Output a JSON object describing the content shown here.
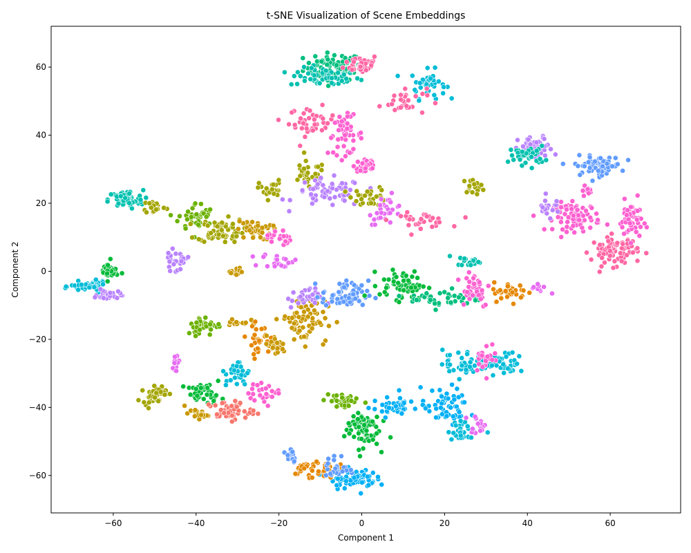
{
  "chart_data": {
    "type": "scatter",
    "title": "t-SNE Visualization of Scene Embeddings",
    "xlabel": "Component 1",
    "ylabel": "Component 2",
    "xlim": [
      -75,
      77
    ],
    "ylim": [
      -71,
      72
    ],
    "xticks": [
      -60,
      -40,
      -20,
      0,
      20,
      40,
      60
    ],
    "yticks": [
      -60,
      -40,
      -20,
      0,
      20,
      40,
      60
    ],
    "grid": false,
    "legend": "none",
    "palette": [
      "#f8766d",
      "#e58700",
      "#c99800",
      "#a3a500",
      "#6bb100",
      "#00ba38",
      "#00bf7d",
      "#00c0af",
      "#00bcd8",
      "#00b0f6",
      "#619cff",
      "#b983ff",
      "#e76bf3",
      "#fd61d1",
      "#ff67a4"
    ],
    "clusters": [
      {
        "x": -7,
        "y": 60,
        "sx": 5,
        "sy": 3,
        "n": 70,
        "c": 6
      },
      {
        "x": -9,
        "y": 57,
        "sx": 6,
        "sy": 2,
        "n": 60,
        "c": 7
      },
      {
        "x": 0,
        "y": 61,
        "sx": 3,
        "sy": 2,
        "n": 40,
        "c": 14
      },
      {
        "x": 16,
        "y": 55,
        "sx": 3,
        "sy": 3,
        "n": 40,
        "c": 8
      },
      {
        "x": 10,
        "y": 50,
        "sx": 4,
        "sy": 3,
        "n": 30,
        "c": 14
      },
      {
        "x": -12,
        "y": 44,
        "sx": 4,
        "sy": 3,
        "n": 40,
        "c": 14
      },
      {
        "x": -4,
        "y": 40,
        "sx": 3,
        "sy": 4,
        "n": 50,
        "c": 13
      },
      {
        "x": 1,
        "y": 31,
        "sx": 2,
        "sy": 2,
        "n": 35,
        "c": 13
      },
      {
        "x": -13,
        "y": 28,
        "sx": 3,
        "sy": 3,
        "n": 30,
        "c": 3
      },
      {
        "x": -8,
        "y": 23,
        "sx": 6,
        "sy": 3,
        "n": 60,
        "c": 11
      },
      {
        "x": 2,
        "y": 22,
        "sx": 3,
        "sy": 2,
        "n": 30,
        "c": 3
      },
      {
        "x": 6,
        "y": 18,
        "sx": 3,
        "sy": 3,
        "n": 30,
        "c": 12
      },
      {
        "x": 14,
        "y": 15,
        "sx": 5,
        "sy": 1.5,
        "n": 30,
        "c": 14
      },
      {
        "x": 27,
        "y": 25,
        "sx": 2,
        "sy": 1.5,
        "n": 20,
        "c": 3
      },
      {
        "x": -57,
        "y": 21,
        "sx": 3,
        "sy": 2,
        "n": 70,
        "c": 7
      },
      {
        "x": -50,
        "y": 19,
        "sx": 2,
        "sy": 1.5,
        "n": 20,
        "c": 3
      },
      {
        "x": -40,
        "y": 16,
        "sx": 3,
        "sy": 3,
        "n": 40,
        "c": 4
      },
      {
        "x": -34,
        "y": 12,
        "sx": 4,
        "sy": 2.5,
        "n": 70,
        "c": 3
      },
      {
        "x": -26,
        "y": 12,
        "sx": 3,
        "sy": 2,
        "n": 40,
        "c": 2
      },
      {
        "x": -20,
        "y": 10,
        "sx": 2,
        "sy": 2,
        "n": 20,
        "c": 13
      },
      {
        "x": -22,
        "y": 24,
        "sx": 2,
        "sy": 2,
        "n": 25,
        "c": 3
      },
      {
        "x": 42,
        "y": 36,
        "sx": 3,
        "sy": 2.5,
        "n": 60,
        "c": 11
      },
      {
        "x": 40,
        "y": 34,
        "sx": 3,
        "sy": 2,
        "n": 40,
        "c": 7
      },
      {
        "x": 57,
        "y": 31,
        "sx": 4,
        "sy": 2,
        "n": 70,
        "c": 10
      },
      {
        "x": 54,
        "y": 24,
        "sx": 1,
        "sy": 1,
        "n": 10,
        "c": 13
      },
      {
        "x": 52,
        "y": 16,
        "sx": 4,
        "sy": 3,
        "n": 80,
        "c": 13
      },
      {
        "x": 61,
        "y": 6,
        "sx": 4,
        "sy": 3,
        "n": 80,
        "c": 14
      },
      {
        "x": 65,
        "y": 15,
        "sx": 2,
        "sy": 4,
        "n": 50,
        "c": 13
      },
      {
        "x": 45,
        "y": 19,
        "sx": 2,
        "sy": 2,
        "n": 20,
        "c": 11
      },
      {
        "x": -66,
        "y": -4.5,
        "sx": 3,
        "sy": 1,
        "n": 50,
        "c": 8
      },
      {
        "x": -61,
        "y": 0,
        "sx": 1.5,
        "sy": 2,
        "n": 35,
        "c": 5
      },
      {
        "x": -61,
        "y": -7,
        "sx": 2,
        "sy": 1,
        "n": 30,
        "c": 11
      },
      {
        "x": -45,
        "y": 3,
        "sx": 2,
        "sy": 2,
        "n": 25,
        "c": 11
      },
      {
        "x": -30,
        "y": 0,
        "sx": 2,
        "sy": 1,
        "n": 15,
        "c": 2
      },
      {
        "x": -20,
        "y": 3,
        "sx": 3,
        "sy": 1.5,
        "n": 20,
        "c": 12
      },
      {
        "x": -14,
        "y": -14,
        "sx": 4,
        "sy": 5,
        "n": 80,
        "c": 2
      },
      {
        "x": -14,
        "y": -8,
        "sx": 3,
        "sy": 2,
        "n": 30,
        "c": 11
      },
      {
        "x": -4,
        "y": -7,
        "sx": 4,
        "sy": 3,
        "n": 60,
        "c": 10
      },
      {
        "x": 10,
        "y": -4,
        "sx": 4,
        "sy": 3,
        "n": 60,
        "c": 5
      },
      {
        "x": 20,
        "y": -8,
        "sx": 6,
        "sy": 2,
        "n": 40,
        "c": 6
      },
      {
        "x": 27,
        "y": -5,
        "sx": 3,
        "sy": 4,
        "n": 40,
        "c": 13
      },
      {
        "x": 36,
        "y": -6,
        "sx": 3,
        "sy": 2,
        "n": 40,
        "c": 1
      },
      {
        "x": 43,
        "y": -5,
        "sx": 1.5,
        "sy": 1,
        "n": 10,
        "c": 12
      },
      {
        "x": 26,
        "y": 3,
        "sx": 2,
        "sy": 1,
        "n": 20,
        "c": 7
      },
      {
        "x": -38,
        "y": -16,
        "sx": 3,
        "sy": 2,
        "n": 40,
        "c": 4
      },
      {
        "x": -30,
        "y": -15,
        "sx": 2,
        "sy": 1,
        "n": 15,
        "c": 2
      },
      {
        "x": -25,
        "y": -20,
        "sx": 2,
        "sy": 3,
        "n": 30,
        "c": 1
      },
      {
        "x": -21,
        "y": -22,
        "sx": 2,
        "sy": 2,
        "n": 25,
        "c": 2
      },
      {
        "x": -45,
        "y": -27,
        "sx": 1,
        "sy": 2,
        "n": 15,
        "c": 12
      },
      {
        "x": -50,
        "y": -36,
        "sx": 2,
        "sy": 2,
        "n": 40,
        "c": 3
      },
      {
        "x": -38,
        "y": -36,
        "sx": 3,
        "sy": 2,
        "n": 40,
        "c": 5
      },
      {
        "x": -30,
        "y": -30,
        "sx": 2,
        "sy": 3,
        "n": 30,
        "c": 8
      },
      {
        "x": -32,
        "y": -41,
        "sx": 4,
        "sy": 2,
        "n": 50,
        "c": 0
      },
      {
        "x": -40,
        "y": -42,
        "sx": 2,
        "sy": 1,
        "n": 20,
        "c": 2
      },
      {
        "x": -23,
        "y": -36,
        "sx": 3,
        "sy": 2,
        "n": 25,
        "c": 13
      },
      {
        "x": -5,
        "y": -38,
        "sx": 3,
        "sy": 2,
        "n": 30,
        "c": 4
      },
      {
        "x": 0,
        "y": -46,
        "sx": 3,
        "sy": 4,
        "n": 70,
        "c": 5
      },
      {
        "x": 8,
        "y": -40,
        "sx": 4,
        "sy": 2,
        "n": 40,
        "c": 9
      },
      {
        "x": 20,
        "y": -40,
        "sx": 4,
        "sy": 4,
        "n": 60,
        "c": 9
      },
      {
        "x": 25,
        "y": -27,
        "sx": 4,
        "sy": 3,
        "n": 50,
        "c": 8
      },
      {
        "x": 35,
        "y": -27,
        "sx": 3,
        "sy": 2,
        "n": 40,
        "c": 8
      },
      {
        "x": 30,
        "y": -25,
        "sx": 2,
        "sy": 3,
        "n": 25,
        "c": 13
      },
      {
        "x": 25,
        "y": -47,
        "sx": 3,
        "sy": 2,
        "n": 30,
        "c": 8
      },
      {
        "x": 28,
        "y": -45,
        "sx": 2,
        "sy": 2,
        "n": 15,
        "c": 12
      },
      {
        "x": -2,
        "y": -61,
        "sx": 4,
        "sy": 2,
        "n": 70,
        "c": 9
      },
      {
        "x": -12,
        "y": -58,
        "sx": 4,
        "sy": 2,
        "n": 40,
        "c": 1
      },
      {
        "x": -17,
        "y": -54,
        "sx": 1,
        "sy": 2,
        "n": 15,
        "c": 10
      },
      {
        "x": -6,
        "y": -58,
        "sx": 2,
        "sy": 3,
        "n": 25,
        "c": 10
      }
    ]
  }
}
